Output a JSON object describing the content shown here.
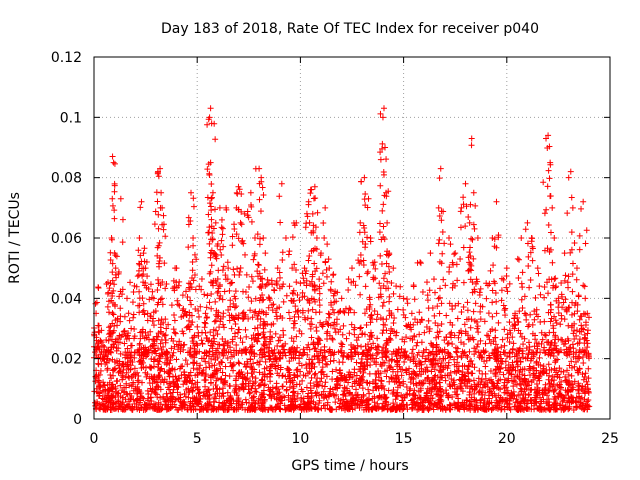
{
  "chart_data": {
    "type": "scatter",
    "title": "Day 183 of 2018, Rate Of TEC Index for receiver p040",
    "xlabel": "GPS time / hours",
    "ylabel": "ROTI / TECUs",
    "xlim": [
      0,
      25
    ],
    "ylim": [
      0,
      0.12
    ],
    "x_ticks": [
      0,
      5,
      10,
      15,
      20,
      25
    ],
    "x_tick_labels": [
      "0",
      "5",
      "10",
      "15",
      "20",
      "25"
    ],
    "y_ticks": [
      0,
      0.02,
      0.04,
      0.06,
      0.08,
      0.1,
      0.12
    ],
    "y_tick_labels": [
      "0",
      "0.02",
      "0.04",
      "0.06",
      "0.08",
      "0.1",
      "0.12"
    ],
    "grid": true,
    "legend": "none",
    "marker": "plus",
    "color": "#ff0000",
    "x_range_of_data": [
      0,
      24
    ],
    "background_roti_range": [
      0.003,
      0.022
    ],
    "series": [
      {
        "name": "ROTI",
        "points": [
          [
            0.1,
            0.035
          ],
          [
            0.2,
            0.031
          ],
          [
            0.5,
            0.02
          ],
          [
            0.8,
            0.045
          ],
          [
            0.85,
            0.06
          ],
          [
            0.9,
            0.087
          ],
          [
            0.95,
            0.085
          ],
          [
            1.0,
            0.055
          ],
          [
            1.05,
            0.05
          ],
          [
            1.3,
            0.073
          ],
          [
            1.6,
            0.04
          ],
          [
            1.8,
            0.03
          ],
          [
            2.2,
            0.06
          ],
          [
            2.3,
            0.072
          ],
          [
            2.4,
            0.055
          ],
          [
            2.5,
            0.05
          ],
          [
            2.6,
            0.035
          ],
          [
            2.9,
            0.04
          ],
          [
            3.1,
            0.082
          ],
          [
            3.2,
            0.083
          ],
          [
            3.25,
            0.075
          ],
          [
            3.3,
            0.07
          ],
          [
            3.5,
            0.03
          ],
          [
            4.0,
            0.05
          ],
          [
            4.3,
            0.036
          ],
          [
            4.6,
            0.045
          ],
          [
            4.7,
            0.075
          ],
          [
            4.8,
            0.06
          ],
          [
            5.1,
            0.044
          ],
          [
            5.4,
            0.035
          ],
          [
            5.6,
            0.1
          ],
          [
            5.65,
            0.103
          ],
          [
            5.7,
            0.098
          ],
          [
            5.65,
            0.085
          ],
          [
            5.8,
            0.055
          ],
          [
            5.9,
            0.065
          ],
          [
            6.0,
            0.058
          ],
          [
            6.1,
            0.07
          ],
          [
            6.2,
            0.066
          ],
          [
            6.4,
            0.07
          ],
          [
            6.5,
            0.05
          ],
          [
            6.8,
            0.063
          ],
          [
            6.9,
            0.07
          ],
          [
            7.0,
            0.077
          ],
          [
            7.1,
            0.065
          ],
          [
            7.3,
            0.068
          ],
          [
            7.6,
            0.075
          ],
          [
            7.8,
            0.06
          ],
          [
            8.0,
            0.083
          ],
          [
            8.1,
            0.08
          ],
          [
            8.2,
            0.06
          ],
          [
            8.3,
            0.055
          ],
          [
            8.5,
            0.04
          ],
          [
            8.9,
            0.05
          ],
          [
            9.1,
            0.078
          ],
          [
            9.3,
            0.06
          ],
          [
            9.6,
            0.05
          ],
          [
            9.8,
            0.065
          ],
          [
            10.0,
            0.045
          ],
          [
            10.2,
            0.05
          ],
          [
            10.4,
            0.072
          ],
          [
            10.5,
            0.076
          ],
          [
            10.6,
            0.068
          ],
          [
            10.7,
            0.077
          ],
          [
            10.8,
            0.06
          ],
          [
            11.0,
            0.055
          ],
          [
            11.2,
            0.07
          ],
          [
            11.4,
            0.05
          ],
          [
            11.6,
            0.048
          ],
          [
            12.0,
            0.04
          ],
          [
            12.5,
            0.05
          ],
          [
            12.9,
            0.065
          ],
          [
            13.1,
            0.08
          ],
          [
            13.3,
            0.073
          ],
          [
            13.4,
            0.06
          ],
          [
            13.6,
            0.052
          ],
          [
            13.9,
            0.086
          ],
          [
            14.0,
            0.1
          ],
          [
            14.05,
            0.103
          ],
          [
            14.1,
            0.09
          ],
          [
            14.15,
            0.075
          ],
          [
            14.2,
            0.065
          ],
          [
            14.3,
            0.055
          ],
          [
            14.5,
            0.05
          ],
          [
            15.0,
            0.04
          ],
          [
            15.4,
            0.035
          ],
          [
            15.8,
            0.052
          ],
          [
            16.3,
            0.055
          ],
          [
            16.7,
            0.07
          ],
          [
            16.8,
            0.083
          ],
          [
            16.9,
            0.062
          ],
          [
            17.2,
            0.06
          ],
          [
            17.5,
            0.055
          ],
          [
            17.8,
            0.07
          ],
          [
            18.0,
            0.078
          ],
          [
            18.2,
            0.065
          ],
          [
            18.3,
            0.093
          ],
          [
            18.4,
            0.075
          ],
          [
            18.6,
            0.06
          ],
          [
            19.0,
            0.045
          ],
          [
            19.3,
            0.06
          ],
          [
            19.5,
            0.072
          ],
          [
            20.0,
            0.05
          ],
          [
            20.4,
            0.035
          ],
          [
            20.7,
            0.06
          ],
          [
            21.0,
            0.065
          ],
          [
            21.2,
            0.06
          ],
          [
            21.5,
            0.05
          ],
          [
            21.9,
            0.093
          ],
          [
            22.0,
            0.094
          ],
          [
            22.1,
            0.085
          ],
          [
            22.2,
            0.07
          ],
          [
            22.3,
            0.06
          ],
          [
            22.5,
            0.04
          ],
          [
            22.8,
            0.055
          ],
          [
            23.0,
            0.08
          ],
          [
            23.1,
            0.082
          ],
          [
            23.2,
            0.07
          ],
          [
            23.4,
            0.05
          ],
          [
            23.7,
            0.072
          ],
          [
            23.8,
            0.04
          ],
          [
            23.9,
            0.035
          ]
        ]
      }
    ]
  }
}
